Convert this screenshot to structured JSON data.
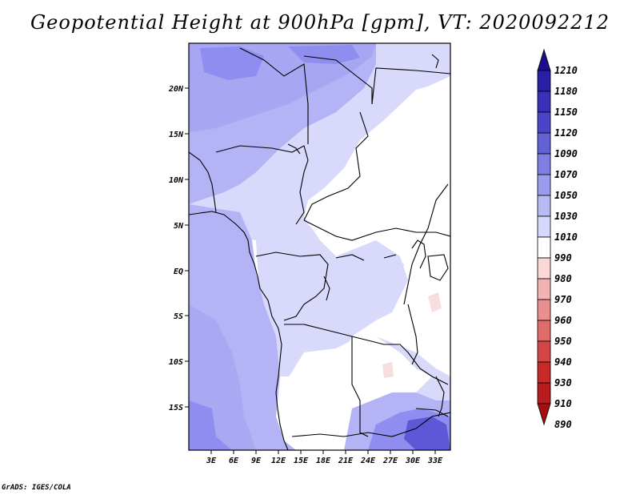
{
  "title": "Geopotential Height at 900hPa [gpm], VT: 2020092212",
  "credit": "GrADS: IGES/COLA",
  "map": {
    "lat_labels": [
      "20N",
      "15N",
      "10N",
      "5N",
      "EQ",
      "5S",
      "10S",
      "15S"
    ],
    "lon_labels": [
      "3E",
      "6E",
      "9E",
      "12E",
      "15E",
      "18E",
      "21E",
      "24E",
      "27E",
      "30E",
      "33E"
    ]
  },
  "colorbar": {
    "levels": [
      "1210",
      "1180",
      "1150",
      "1120",
      "1090",
      "1070",
      "1050",
      "1030",
      "1010",
      "990",
      "980",
      "970",
      "960",
      "950",
      "940",
      "930",
      "910",
      "890"
    ],
    "colors": [
      "#1c0d8c",
      "#2a1fa6",
      "#3930b8",
      "#4a45c8",
      "#6261d6",
      "#7e80e2",
      "#9a9ced",
      "#b8baf4",
      "#d6d8fb",
      "#ffffff",
      "#fbd7d7",
      "#f3b3b3",
      "#e98f8f",
      "#df6b6b",
      "#d44646",
      "#c82a2a",
      "#b81c1c",
      "#a60f0f"
    ]
  },
  "colors": {
    "max_blue": "#5d59d6",
    "mid_blue": "#8f8ef0",
    "light_blue": "#b3b3f6",
    "pale_blue": "#d8d9fb",
    "white": "#ffffff",
    "pink": "#f6dede"
  }
}
